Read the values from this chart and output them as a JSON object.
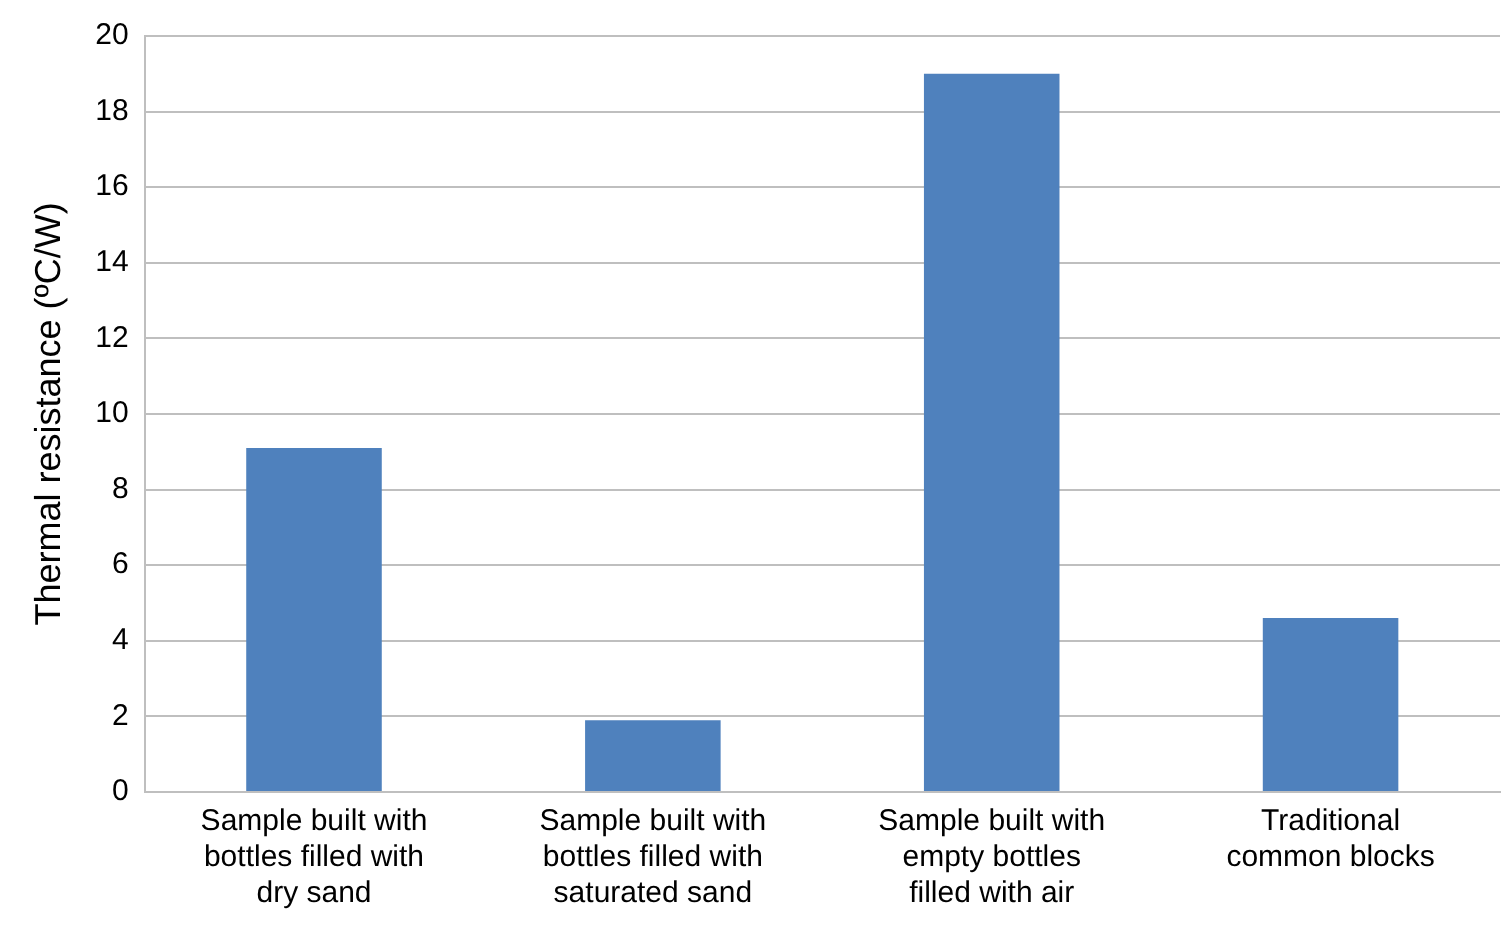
{
  "chart_data": {
    "type": "bar",
    "ylabel": "Thermal resistance (ºC/W)",
    "categories": [
      "Sample built with\nbottles filled with\ndry sand",
      "Sample built with\nbottles filled with\nsaturated sand",
      "Sample built with\nempty bottles\nfilled with air",
      "Traditional\ncommon blocks"
    ],
    "values": [
      9.1,
      1.9,
      19.0,
      4.6
    ],
    "color": "#4f81bd",
    "ylim": [
      0,
      20
    ],
    "yticks": [
      0,
      2,
      4,
      6,
      8,
      10,
      12,
      14,
      16,
      18,
      20
    ],
    "grid": "y",
    "legend": false
  }
}
